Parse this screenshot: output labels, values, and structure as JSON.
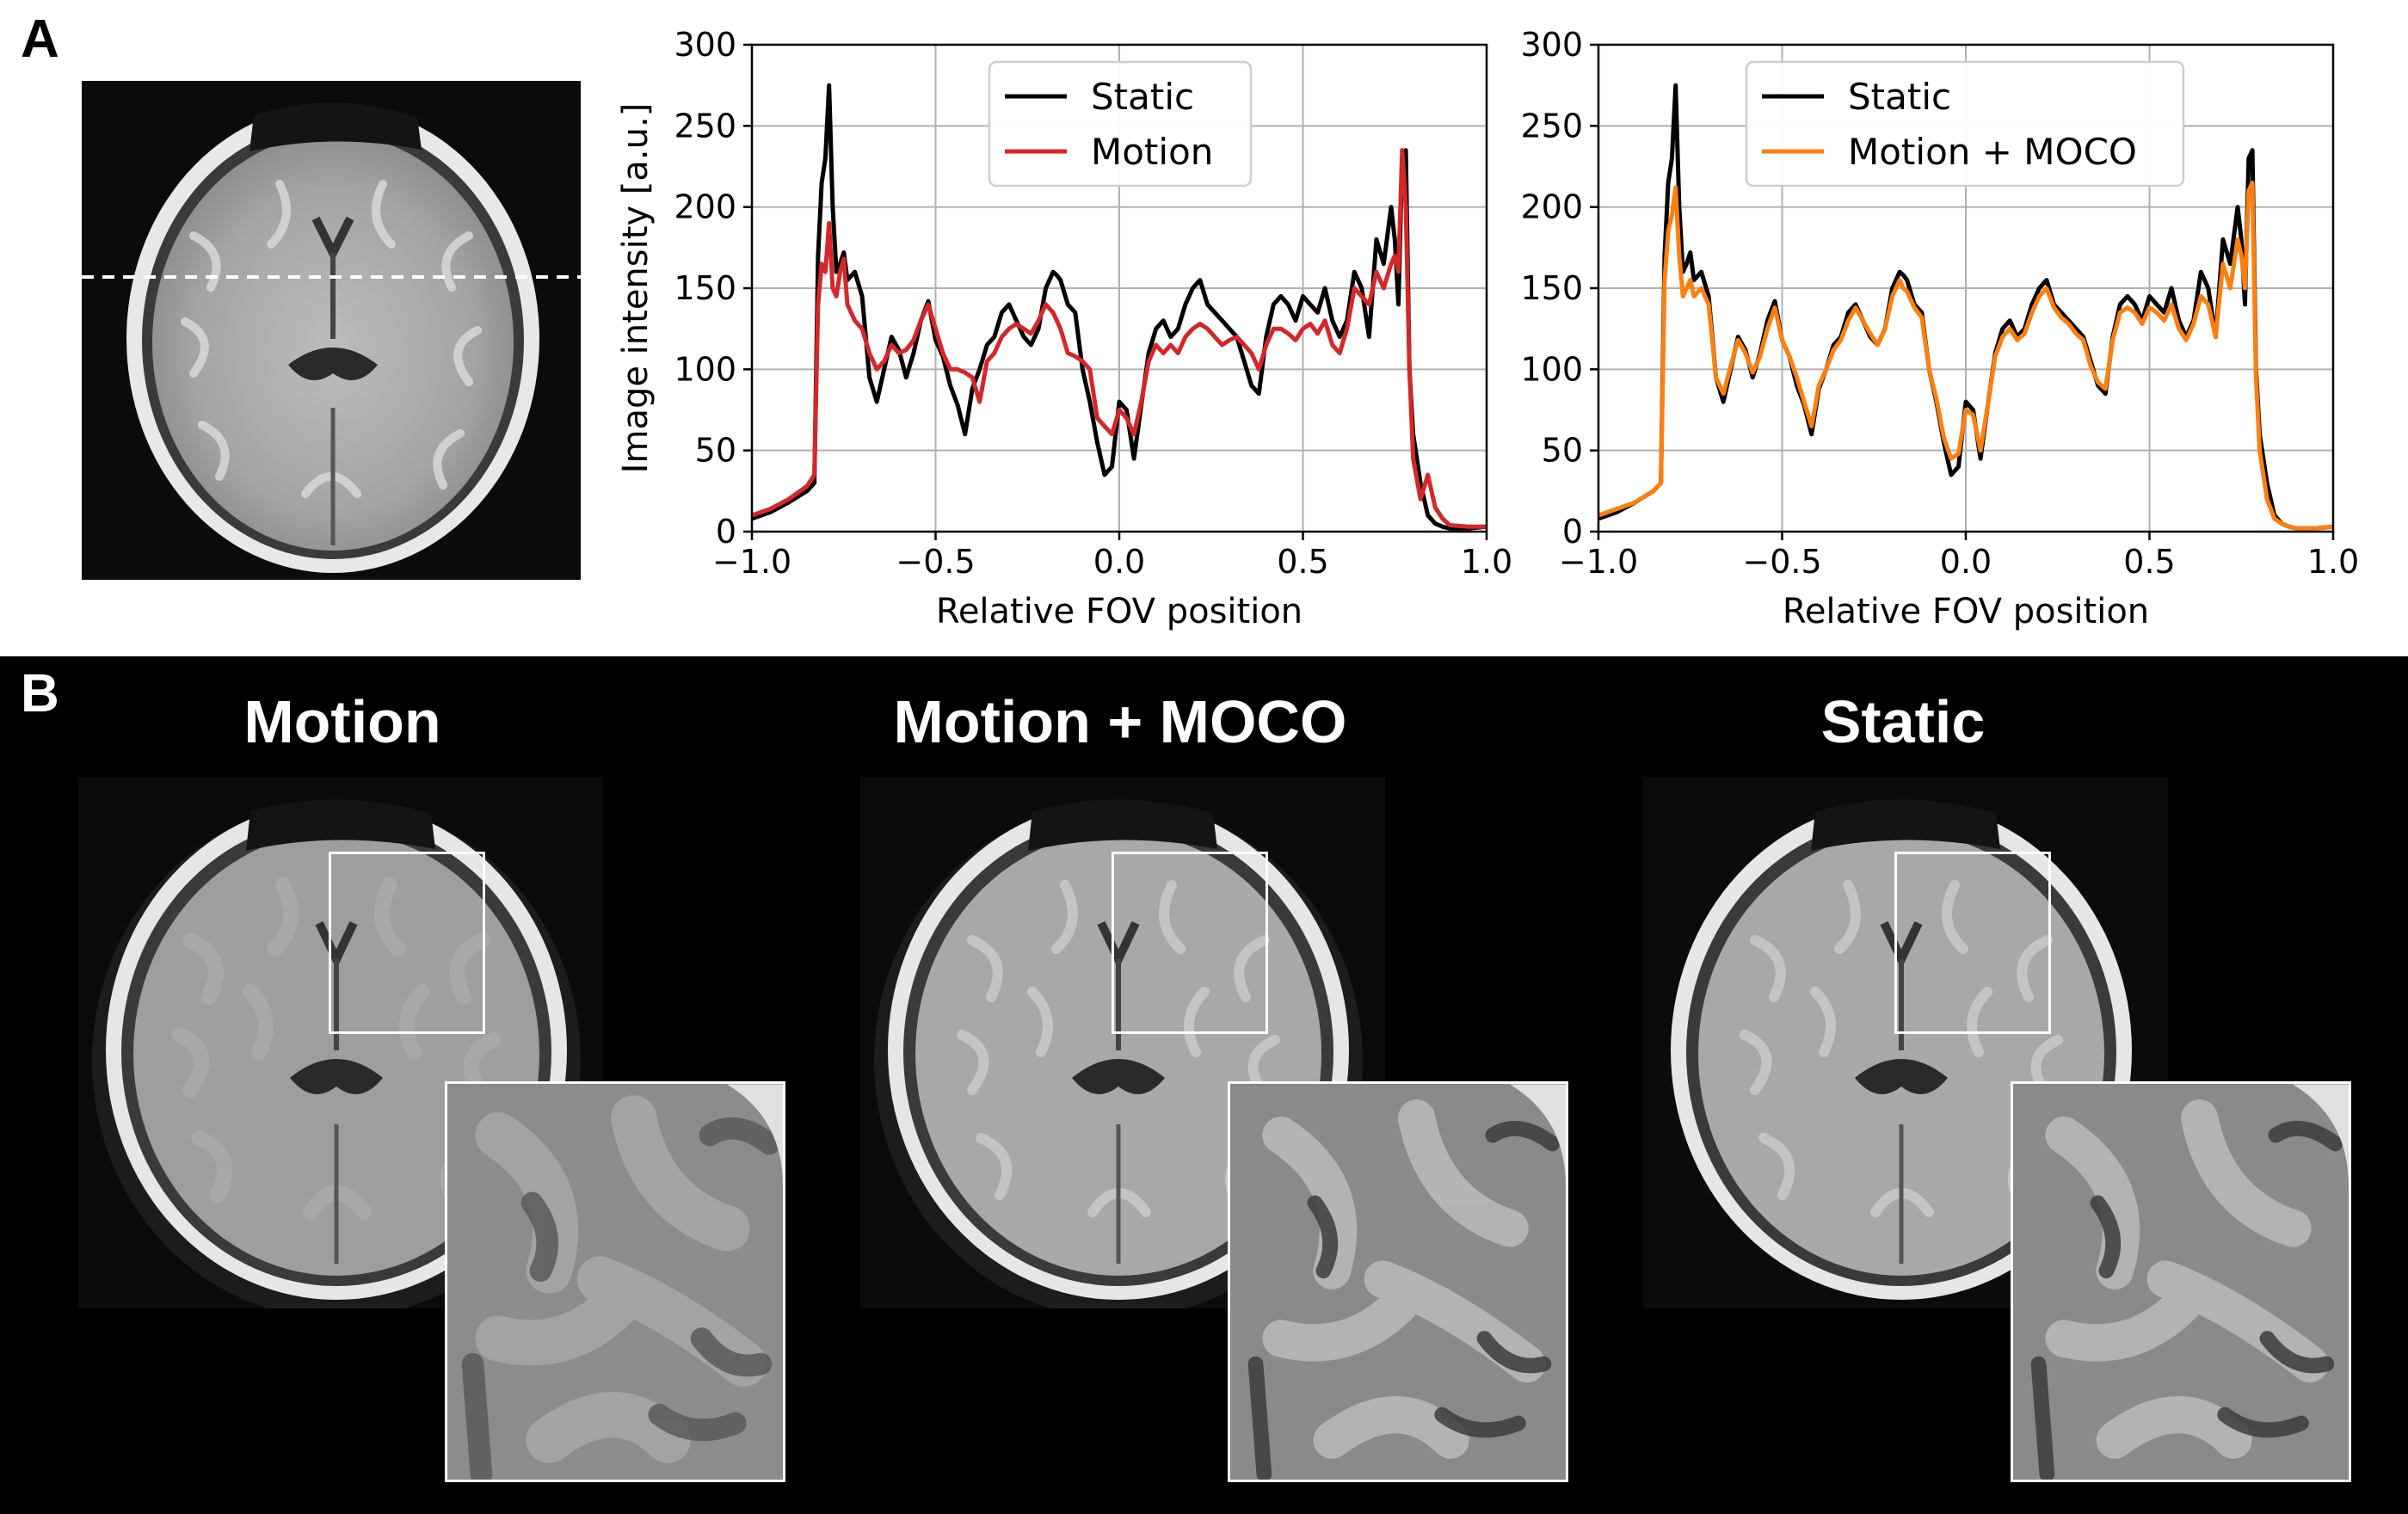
{
  "panel_a": {
    "letter": "A",
    "brain_image": "axial-brain-mri-static"
  },
  "panel_b": {
    "letter": "B",
    "images": [
      {
        "title": "Motion",
        "style": "motion"
      },
      {
        "title": "Motion + MOCO",
        "style": "moco"
      },
      {
        "title": "Static",
        "style": "static"
      }
    ]
  },
  "colors": {
    "static": "#000000",
    "motion": "#d62728",
    "moco": "#ff7f0e",
    "grid": "#b0b0b0"
  },
  "chart_data": [
    {
      "type": "line",
      "title": "",
      "xlabel": "Relative FOV position",
      "ylabel": "Image intensity [a.u.]",
      "xlim": [
        -1.0,
        1.0
      ],
      "ylim": [
        0,
        300
      ],
      "xticks": [
        -1.0,
        -0.5,
        0.0,
        0.5,
        1.0
      ],
      "xtick_labels": [
        "−1.0",
        "−0.5",
        "0.0",
        "0.5",
        "1.0"
      ],
      "yticks": [
        0,
        50,
        100,
        150,
        200,
        250,
        300
      ],
      "ytick_labels": [
        "0",
        "50",
        "100",
        "150",
        "200",
        "250",
        "300"
      ],
      "grid": true,
      "legend": "upper-center",
      "series": [
        {
          "name": "Static",
          "color": "#000000",
          "x": [
            -1.0,
            -0.95,
            -0.9,
            -0.85,
            -0.83,
            -0.82,
            -0.81,
            -0.8,
            -0.79,
            -0.78,
            -0.77,
            -0.76,
            -0.75,
            -0.74,
            -0.72,
            -0.7,
            -0.68,
            -0.66,
            -0.64,
            -0.62,
            -0.6,
            -0.58,
            -0.56,
            -0.54,
            -0.52,
            -0.5,
            -0.48,
            -0.46,
            -0.44,
            -0.42,
            -0.4,
            -0.38,
            -0.36,
            -0.34,
            -0.32,
            -0.3,
            -0.28,
            -0.26,
            -0.24,
            -0.22,
            -0.2,
            -0.18,
            -0.17,
            -0.16,
            -0.14,
            -0.12,
            -0.1,
            -0.08,
            -0.06,
            -0.04,
            -0.02,
            0.0,
            0.02,
            0.04,
            0.06,
            0.08,
            0.1,
            0.12,
            0.14,
            0.16,
            0.18,
            0.2,
            0.22,
            0.24,
            0.26,
            0.28,
            0.3,
            0.32,
            0.34,
            0.36,
            0.38,
            0.4,
            0.42,
            0.44,
            0.46,
            0.48,
            0.5,
            0.52,
            0.54,
            0.56,
            0.58,
            0.6,
            0.62,
            0.64,
            0.66,
            0.68,
            0.7,
            0.72,
            0.74,
            0.75,
            0.76,
            0.77,
            0.78,
            0.79,
            0.8,
            0.82,
            0.84,
            0.86,
            0.88,
            0.9,
            0.95,
            1.0
          ],
          "y": [
            8,
            12,
            18,
            25,
            30,
            170,
            215,
            230,
            275,
            200,
            160,
            165,
            172,
            155,
            160,
            145,
            95,
            80,
            100,
            120,
            112,
            95,
            110,
            130,
            142,
            118,
            108,
            90,
            78,
            60,
            88,
            100,
            115,
            120,
            135,
            140,
            130,
            120,
            115,
            125,
            150,
            160,
            158,
            155,
            140,
            135,
            100,
            80,
            55,
            35,
            40,
            80,
            75,
            45,
            78,
            110,
            125,
            130,
            120,
            125,
            140,
            150,
            155,
            140,
            135,
            130,
            125,
            120,
            105,
            90,
            85,
            120,
            140,
            145,
            140,
            130,
            145,
            140,
            135,
            150,
            130,
            120,
            130,
            160,
            150,
            120,
            180,
            165,
            200,
            180,
            140,
            230,
            235,
            100,
            60,
            30,
            10,
            5,
            3,
            2,
            2,
            3
          ]
        },
        {
          "name": "Motion",
          "color": "#d62728",
          "x": [
            -1.0,
            -0.95,
            -0.9,
            -0.85,
            -0.83,
            -0.82,
            -0.81,
            -0.8,
            -0.79,
            -0.78,
            -0.77,
            -0.76,
            -0.75,
            -0.74,
            -0.72,
            -0.7,
            -0.68,
            -0.66,
            -0.64,
            -0.62,
            -0.6,
            -0.58,
            -0.56,
            -0.54,
            -0.52,
            -0.5,
            -0.48,
            -0.46,
            -0.44,
            -0.42,
            -0.4,
            -0.38,
            -0.36,
            -0.34,
            -0.32,
            -0.3,
            -0.28,
            -0.26,
            -0.24,
            -0.22,
            -0.2,
            -0.18,
            -0.17,
            -0.16,
            -0.14,
            -0.12,
            -0.1,
            -0.08,
            -0.06,
            -0.04,
            -0.02,
            0.0,
            0.02,
            0.04,
            0.06,
            0.08,
            0.1,
            0.12,
            0.14,
            0.16,
            0.18,
            0.2,
            0.22,
            0.24,
            0.26,
            0.28,
            0.3,
            0.32,
            0.34,
            0.36,
            0.38,
            0.4,
            0.42,
            0.44,
            0.46,
            0.48,
            0.5,
            0.52,
            0.54,
            0.56,
            0.58,
            0.6,
            0.62,
            0.64,
            0.66,
            0.68,
            0.7,
            0.72,
            0.74,
            0.75,
            0.76,
            0.77,
            0.78,
            0.79,
            0.8,
            0.82,
            0.84,
            0.86,
            0.88,
            0.9,
            0.95,
            1.0
          ],
          "y": [
            10,
            14,
            20,
            28,
            35,
            140,
            165,
            160,
            190,
            150,
            145,
            160,
            168,
            140,
            130,
            125,
            110,
            100,
            105,
            115,
            110,
            112,
            118,
            130,
            140,
            125,
            110,
            100,
            100,
            98,
            95,
            80,
            105,
            110,
            120,
            125,
            128,
            125,
            122,
            130,
            140,
            135,
            130,
            125,
            110,
            108,
            105,
            100,
            70,
            65,
            60,
            75,
            70,
            60,
            80,
            105,
            115,
            110,
            115,
            110,
            120,
            125,
            128,
            125,
            120,
            115,
            118,
            120,
            115,
            110,
            100,
            115,
            125,
            125,
            122,
            118,
            125,
            128,
            122,
            130,
            115,
            110,
            125,
            150,
            145,
            140,
            160,
            150,
            165,
            170,
            160,
            235,
            200,
            100,
            45,
            20,
            35,
            15,
            8,
            4,
            3,
            3
          ]
        }
      ]
    },
    {
      "type": "line",
      "title": "",
      "xlabel": "Relative FOV position",
      "ylabel": "",
      "xlim": [
        -1.0,
        1.0
      ],
      "ylim": [
        0,
        300
      ],
      "xticks": [
        -1.0,
        -0.5,
        0.0,
        0.5,
        1.0
      ],
      "xtick_labels": [
        "−1.0",
        "−0.5",
        "0.0",
        "0.5",
        "1.0"
      ],
      "yticks": [
        0,
        50,
        100,
        150,
        200,
        250,
        300
      ],
      "ytick_labels": [
        "0",
        "50",
        "100",
        "150",
        "200",
        "250",
        "300"
      ],
      "grid": true,
      "legend": "upper-center",
      "series": [
        {
          "name": "Static",
          "color": "#000000",
          "x": [
            -1.0,
            -0.95,
            -0.9,
            -0.85,
            -0.83,
            -0.82,
            -0.81,
            -0.8,
            -0.79,
            -0.78,
            -0.77,
            -0.76,
            -0.75,
            -0.74,
            -0.72,
            -0.7,
            -0.68,
            -0.66,
            -0.64,
            -0.62,
            -0.6,
            -0.58,
            -0.56,
            -0.54,
            -0.52,
            -0.5,
            -0.48,
            -0.46,
            -0.44,
            -0.42,
            -0.4,
            -0.38,
            -0.36,
            -0.34,
            -0.32,
            -0.3,
            -0.28,
            -0.26,
            -0.24,
            -0.22,
            -0.2,
            -0.18,
            -0.17,
            -0.16,
            -0.14,
            -0.12,
            -0.1,
            -0.08,
            -0.06,
            -0.04,
            -0.02,
            0.0,
            0.02,
            0.04,
            0.06,
            0.08,
            0.1,
            0.12,
            0.14,
            0.16,
            0.18,
            0.2,
            0.22,
            0.24,
            0.26,
            0.28,
            0.3,
            0.32,
            0.34,
            0.36,
            0.38,
            0.4,
            0.42,
            0.44,
            0.46,
            0.48,
            0.5,
            0.52,
            0.54,
            0.56,
            0.58,
            0.6,
            0.62,
            0.64,
            0.66,
            0.68,
            0.7,
            0.72,
            0.74,
            0.75,
            0.76,
            0.77,
            0.78,
            0.79,
            0.8,
            0.82,
            0.84,
            0.86,
            0.88,
            0.9,
            0.95,
            1.0
          ],
          "y": [
            8,
            12,
            18,
            25,
            30,
            170,
            215,
            230,
            275,
            200,
            160,
            165,
            172,
            155,
            160,
            145,
            95,
            80,
            100,
            120,
            112,
            95,
            110,
            130,
            142,
            118,
            108,
            90,
            78,
            60,
            88,
            100,
            115,
            120,
            135,
            140,
            130,
            120,
            115,
            125,
            150,
            160,
            158,
            155,
            140,
            135,
            100,
            80,
            55,
            35,
            40,
            80,
            75,
            45,
            78,
            110,
            125,
            130,
            120,
            125,
            140,
            150,
            155,
            140,
            135,
            130,
            125,
            120,
            105,
            90,
            85,
            120,
            140,
            145,
            140,
            130,
            145,
            140,
            135,
            150,
            130,
            120,
            130,
            160,
            150,
            120,
            180,
            165,
            200,
            180,
            140,
            230,
            235,
            100,
            60,
            30,
            10,
            5,
            3,
            2,
            2,
            3
          ]
        },
        {
          "name": "Motion + MOCO",
          "color": "#ff7f0e",
          "x": [
            -1.0,
            -0.95,
            -0.9,
            -0.85,
            -0.83,
            -0.82,
            -0.81,
            -0.8,
            -0.79,
            -0.78,
            -0.77,
            -0.76,
            -0.75,
            -0.74,
            -0.72,
            -0.7,
            -0.68,
            -0.66,
            -0.64,
            -0.62,
            -0.6,
            -0.58,
            -0.56,
            -0.54,
            -0.52,
            -0.5,
            -0.48,
            -0.46,
            -0.44,
            -0.42,
            -0.4,
            -0.38,
            -0.36,
            -0.34,
            -0.32,
            -0.3,
            -0.28,
            -0.26,
            -0.24,
            -0.22,
            -0.2,
            -0.18,
            -0.17,
            -0.16,
            -0.14,
            -0.12,
            -0.1,
            -0.08,
            -0.06,
            -0.04,
            -0.02,
            0.0,
            0.02,
            0.04,
            0.06,
            0.08,
            0.1,
            0.12,
            0.14,
            0.16,
            0.18,
            0.2,
            0.22,
            0.24,
            0.26,
            0.28,
            0.3,
            0.32,
            0.34,
            0.36,
            0.38,
            0.4,
            0.42,
            0.44,
            0.46,
            0.48,
            0.5,
            0.52,
            0.54,
            0.56,
            0.58,
            0.6,
            0.62,
            0.64,
            0.66,
            0.68,
            0.7,
            0.72,
            0.74,
            0.75,
            0.76,
            0.77,
            0.78,
            0.79,
            0.8,
            0.82,
            0.84,
            0.86,
            0.88,
            0.9,
            0.95,
            1.0
          ],
          "y": [
            10,
            14,
            18,
            25,
            30,
            155,
            185,
            195,
            212,
            170,
            145,
            150,
            155,
            145,
            150,
            140,
            95,
            85,
            102,
            118,
            110,
            98,
            108,
            125,
            138,
            118,
            108,
            95,
            80,
            65,
            90,
            100,
            112,
            118,
            130,
            138,
            130,
            122,
            115,
            125,
            145,
            155,
            150,
            148,
            138,
            132,
            100,
            82,
            58,
            45,
            48,
            75,
            72,
            50,
            78,
            108,
            120,
            125,
            118,
            122,
            135,
            145,
            150,
            138,
            132,
            128,
            122,
            118,
            102,
            92,
            88,
            118,
            135,
            138,
            135,
            128,
            138,
            135,
            130,
            140,
            125,
            118,
            128,
            145,
            140,
            120,
            165,
            150,
            180,
            170,
            150,
            210,
            215,
            95,
            50,
            20,
            8,
            5,
            3,
            2,
            2,
            3
          ]
        }
      ]
    }
  ]
}
